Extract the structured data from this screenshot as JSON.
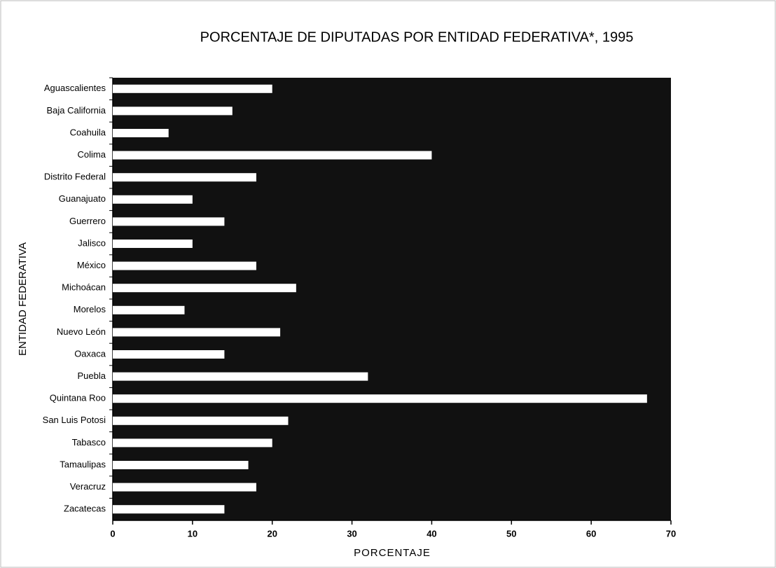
{
  "chart_data": {
    "type": "bar",
    "orientation": "horizontal",
    "title": "PORCENTAJE DE DIPUTADAS POR ENTIDAD FEDERATIVA*, 1995",
    "xlabel": "PORCENTAJE",
    "ylabel": "ENTIDAD FEDERATIVA",
    "categories": [
      "Aguascalientes",
      "Baja California",
      "Coahuila",
      "Colima",
      "Distrito Federal",
      "Guanajuato",
      "Guerrero",
      "Jalisco",
      "México",
      "Michoácan",
      "Morelos",
      "Nuevo León",
      "Oaxaca",
      "Puebla",
      "Quintana Roo",
      "San Luis Potosi",
      "Tabasco",
      "Tamaulipas",
      "Veracruz",
      "Zacatecas"
    ],
    "values": [
      20,
      15,
      7,
      40,
      18,
      10,
      14,
      10,
      18,
      23,
      9,
      21,
      14,
      32,
      67,
      22,
      20,
      17,
      18,
      14
    ],
    "color": "#ffffff",
    "plot_background": "#111111",
    "xlim": [
      0,
      70
    ],
    "xticks": [
      0,
      10,
      20,
      30,
      40,
      50,
      60,
      70
    ]
  }
}
